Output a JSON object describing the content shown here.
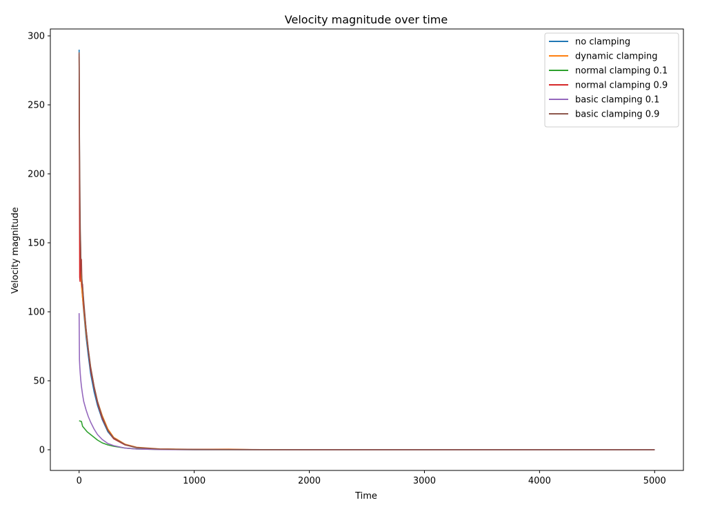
{
  "chart_data": {
    "type": "line",
    "title": "Velocity magnitude over time",
    "xlabel": "Time",
    "ylabel": "Velocity magnitude",
    "xlim": [
      -250,
      5250
    ],
    "ylim": [
      -15,
      305
    ],
    "xticks": [
      0,
      1000,
      2000,
      3000,
      4000,
      5000
    ],
    "yticks": [
      0,
      50,
      100,
      150,
      200,
      250,
      300
    ],
    "grid": false,
    "legend_position": "top-right",
    "series": [
      {
        "name": "no clamping",
        "color": "#1f77b4",
        "x": [
          0,
          2,
          5,
          10,
          15,
          20,
          30,
          40,
          60,
          80,
          100,
          130,
          160,
          200,
          250,
          300,
          400,
          500,
          700,
          1000,
          1500,
          2000,
          3000,
          4000,
          5000
        ],
        "y": [
          290,
          240,
          180,
          150,
          130,
          120,
          110,
          100,
          82,
          68,
          55,
          42,
          32,
          22,
          13,
          8,
          3.5,
          1.5,
          0.5,
          0.2,
          0.1,
          0.05,
          0.02,
          0.01,
          0.01
        ]
      },
      {
        "name": "dynamic clamping",
        "color": "#ff7f0e",
        "x": [
          0,
          2,
          5,
          10,
          15,
          20,
          30,
          40,
          60,
          80,
          100,
          130,
          160,
          200,
          250,
          300,
          400,
          500,
          700,
          1000,
          1300,
          1500,
          2000,
          3000,
          4000,
          5000
        ],
        "y": [
          285,
          235,
          175,
          145,
          128,
          120,
          110,
          102,
          85,
          72,
          60,
          46,
          35,
          25,
          15,
          9,
          4,
          1.8,
          0.6,
          0.3,
          0.4,
          0.1,
          0.05,
          0.02,
          0.01,
          0.01
        ]
      },
      {
        "name": "normal clamping 0.1",
        "color": "#2ca02c",
        "x": [
          0,
          20,
          30,
          50,
          70,
          100,
          130,
          160,
          200,
          250,
          300,
          400,
          500,
          700,
          1000,
          2000,
          3000,
          4000,
          5000
        ],
        "y": [
          21,
          20.5,
          17,
          15,
          13,
          11,
          9,
          7,
          5,
          3.5,
          2.5,
          1.2,
          0.6,
          0.2,
          0.05,
          0.02,
          0.01,
          0.01,
          0.01
        ]
      },
      {
        "name": "normal clamping 0.9",
        "color": "#d62728",
        "x": [
          0,
          2,
          5,
          8,
          12,
          15,
          20,
          25,
          30,
          40,
          60,
          80,
          100,
          130,
          160,
          200,
          250,
          300,
          400,
          500,
          700,
          1000,
          2000,
          3000,
          4000,
          5000
        ],
        "y": [
          287,
          230,
          125,
          122,
          152,
          130,
          138,
          118,
          120,
          105,
          88,
          72,
          58,
          45,
          34,
          23,
          14,
          8,
          3.5,
          1.5,
          0.5,
          0.2,
          0.05,
          0.02,
          0.01,
          0.01
        ]
      },
      {
        "name": "basic clamping 0.1",
        "color": "#9467bd",
        "x": [
          0,
          3,
          6,
          10,
          15,
          20,
          30,
          40,
          60,
          80,
          100,
          130,
          160,
          200,
          250,
          300,
          400,
          500,
          700,
          1000,
          2000,
          3000,
          4000,
          5000
        ],
        "y": [
          99,
          65,
          60,
          55,
          50,
          46,
          40,
          35,
          29,
          24,
          20,
          15,
          11,
          7.5,
          4.5,
          3,
          1.2,
          0.5,
          0.15,
          0.05,
          0.02,
          0.01,
          0.01,
          0.01
        ]
      },
      {
        "name": "basic clamping 0.9",
        "color": "#8c564b",
        "x": [
          0,
          2,
          5,
          10,
          15,
          20,
          30,
          40,
          60,
          80,
          100,
          130,
          160,
          200,
          250,
          300,
          400,
          500,
          700,
          1000,
          2000,
          3000,
          4000,
          5000
        ],
        "y": [
          288,
          238,
          205,
          160,
          140,
          128,
          118,
          108,
          88,
          73,
          60,
          46,
          35,
          24,
          14,
          8.5,
          3.7,
          1.6,
          0.5,
          0.2,
          0.05,
          0.02,
          0.01,
          0.01
        ]
      }
    ]
  }
}
